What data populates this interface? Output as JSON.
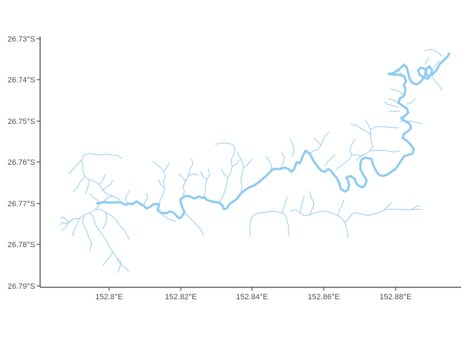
{
  "map": {
    "y_ticks": [
      "26.73°S",
      "26.74°S",
      "26.75°S",
      "26.76°S",
      "26.77°S",
      "26.78°S",
      "26.79°S"
    ],
    "x_ticks": [
      "152.8°E",
      "152.82°E",
      "152.84°E",
      "152.86°E",
      "152.88°E"
    ],
    "colors": {
      "stream": "#8ecbf0",
      "main_river": "#8ecbf0",
      "axis": "#000000",
      "text": "#4d4d4d"
    },
    "layers": [
      "main-river",
      "tributary-streams"
    ]
  }
}
